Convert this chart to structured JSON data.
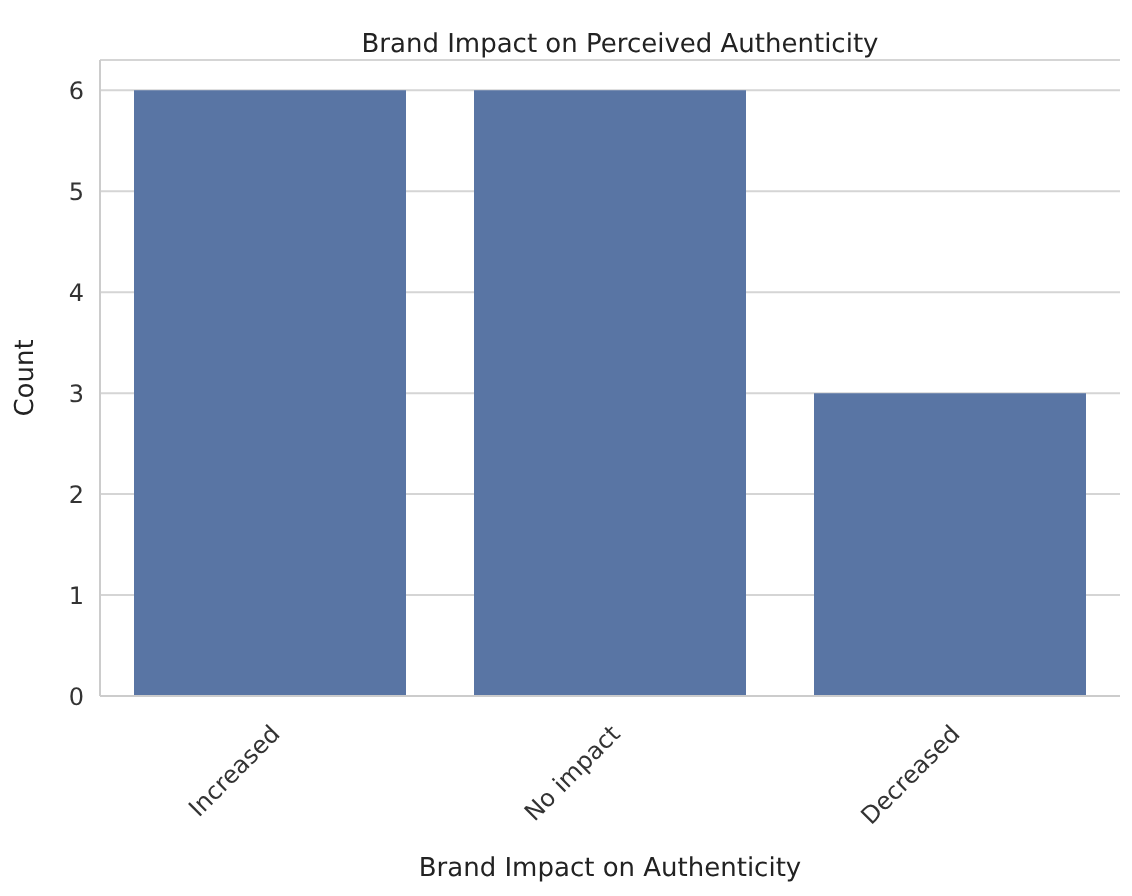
{
  "chart_data": {
    "type": "bar",
    "title": "Brand Impact on Perceived Authenticity",
    "xlabel": "Brand Impact on Authenticity",
    "ylabel": "Count",
    "categories": [
      "Increased",
      "No impact",
      "Decreased"
    ],
    "values": [
      6,
      6,
      3
    ],
    "color": "#5975a4",
    "ylim": [
      0,
      6.3
    ],
    "yticks": [
      0,
      1,
      2,
      3,
      4,
      5,
      6
    ],
    "grid": "y"
  }
}
